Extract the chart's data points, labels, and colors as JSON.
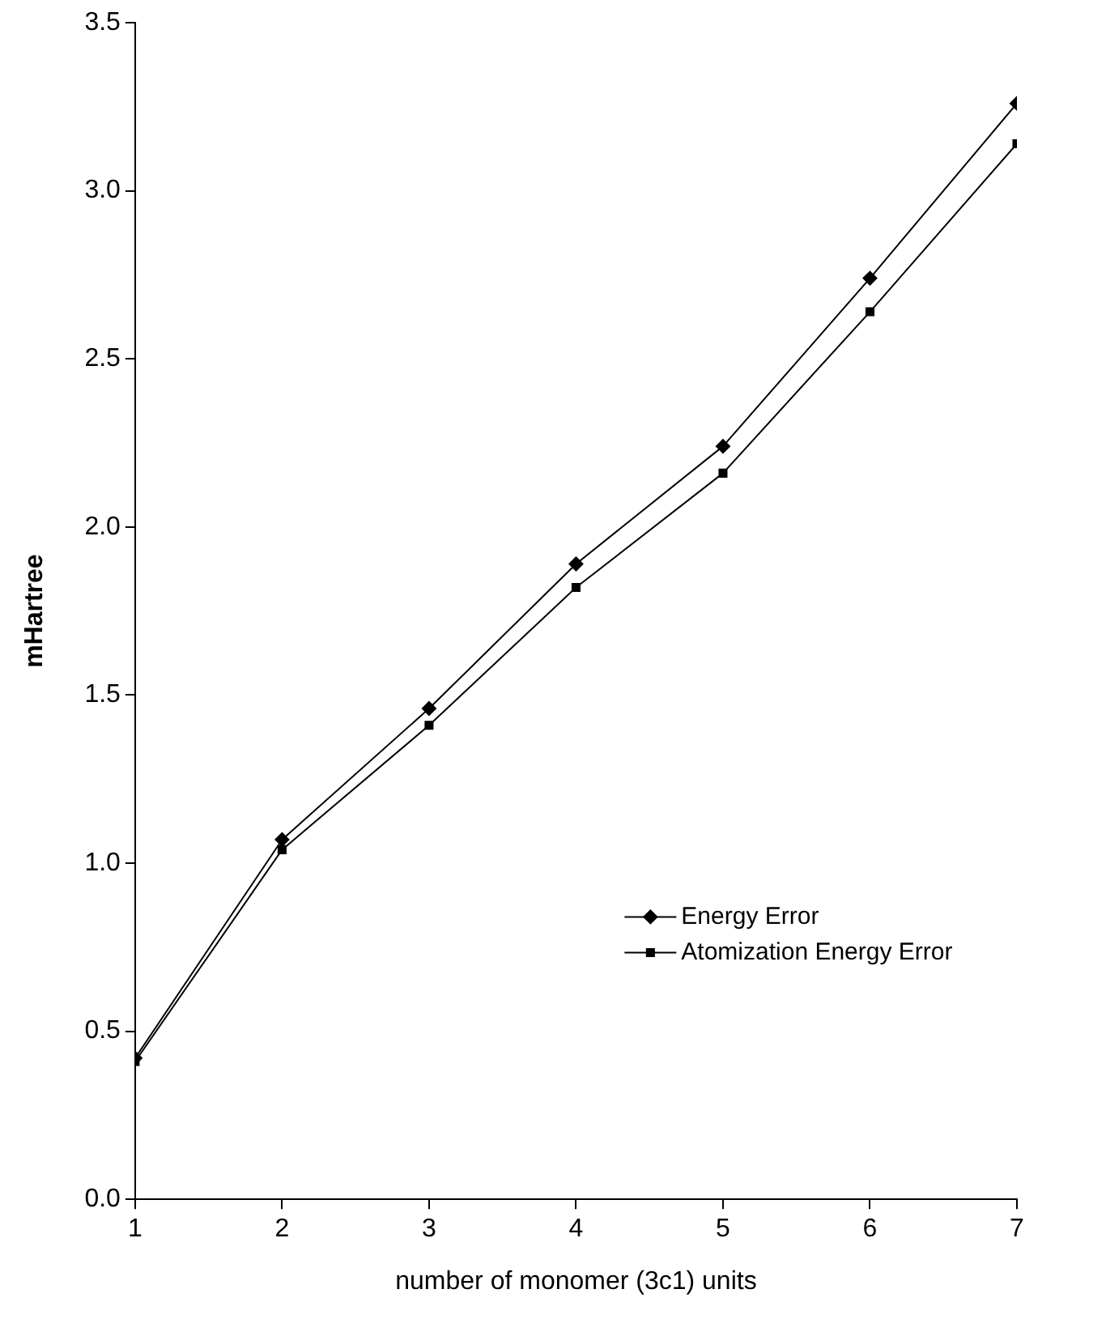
{
  "chart_data": {
    "type": "line",
    "xlabel": "number of monomer (3c1) units",
    "ylabel": "mHartree",
    "x": [
      1,
      2,
      3,
      4,
      5,
      6,
      7
    ],
    "series": [
      {
        "name": "Energy Error",
        "color": "#000000",
        "marker": "diamond",
        "values": [
          0.42,
          1.07,
          1.46,
          1.89,
          2.24,
          2.74,
          3.26
        ]
      },
      {
        "name": "Atomization Energy Error",
        "color": "#000000",
        "marker": "square",
        "values": [
          0.41,
          1.04,
          1.41,
          1.82,
          2.16,
          2.64,
          3.14
        ]
      }
    ],
    "xlim": [
      1,
      7
    ],
    "xticks": [
      1,
      2,
      3,
      4,
      5,
      6,
      7
    ],
    "ylim": [
      0,
      3.5
    ],
    "yticks": [
      {
        "value": 0,
        "label": "0.0"
      },
      {
        "value": 0.5,
        "label": "0.5"
      },
      {
        "value": 1,
        "label": "1.0"
      },
      {
        "value": 1.5,
        "label": "1.5"
      },
      {
        "value": 2,
        "label": "2.0"
      },
      {
        "value": 2.5,
        "label": "2.5"
      },
      {
        "value": 3,
        "label": "3.0"
      },
      {
        "value": 3.5,
        "label": "3.5"
      }
    ],
    "grid": false,
    "legend": "right",
    "line_style": "solid"
  }
}
